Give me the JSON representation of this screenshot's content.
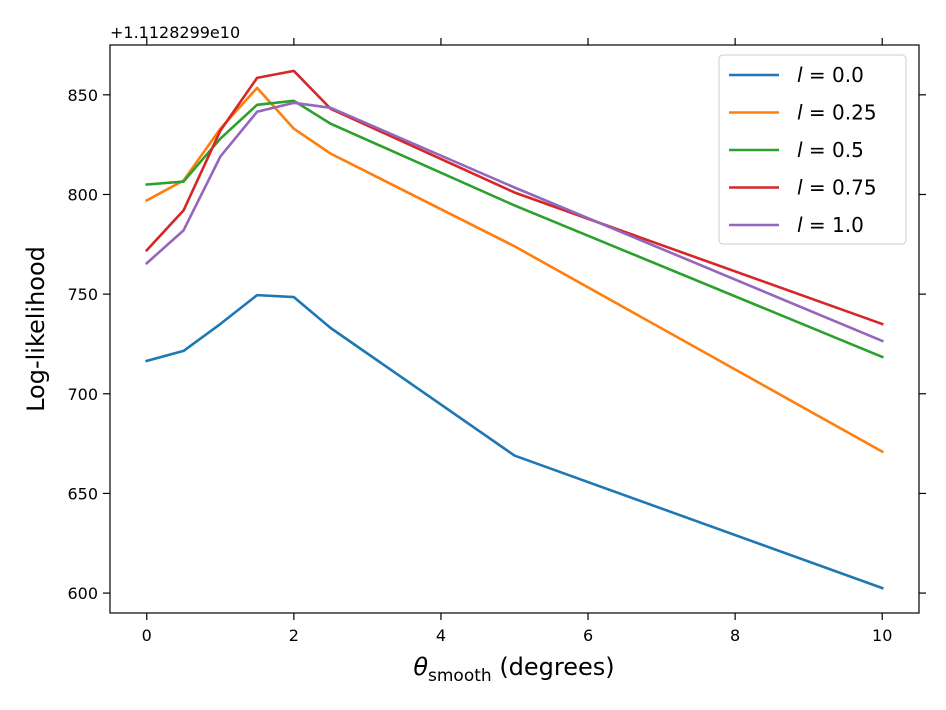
{
  "chart_data": {
    "type": "line",
    "title": "",
    "offset_text": "+1.1128299e10",
    "xlabel_symbol": "θ",
    "xlabel_subscript": "smooth",
    "xlabel_suffix": " (degrees)",
    "ylabel": "Log-likelihood",
    "xlim": [
      -0.5,
      10.5
    ],
    "ylim": [
      590,
      875
    ],
    "x_ticks": [
      0,
      2,
      4,
      6,
      8,
      10
    ],
    "y_ticks": [
      600,
      650,
      700,
      750,
      800,
      850
    ],
    "grid": false,
    "legend_position": "top-right",
    "x": [
      0,
      0.5,
      1,
      1.5,
      2,
      2.5,
      5,
      10
    ],
    "series": [
      {
        "name": "l = 0.0",
        "param": "l",
        "value": "0.0",
        "color": "#1f77b4",
        "values": [
          716.5,
          721.5,
          735,
          749.5,
          748.5,
          733,
          669,
          602.5
        ]
      },
      {
        "name": "l = 0.25",
        "param": "l",
        "value": "0.25",
        "color": "#ff7f0e",
        "values": [
          797,
          807,
          833,
          853.5,
          833,
          820.5,
          774,
          671
        ]
      },
      {
        "name": "l = 0.5",
        "param": "l",
        "value": "0.5",
        "color": "#2ca02c",
        "values": [
          805,
          806.5,
          828,
          845,
          847,
          835.5,
          794.5,
          718.5
        ]
      },
      {
        "name": "l = 0.75",
        "param": "l",
        "value": "0.75",
        "color": "#d62728",
        "values": [
          772,
          792,
          832,
          858.5,
          862,
          843,
          801,
          735
        ]
      },
      {
        "name": "l = 1.0",
        "param": "l",
        "value": "1.0",
        "color": "#9467bd",
        "values": [
          765.5,
          782,
          819,
          841.5,
          846,
          843.5,
          803.5,
          726.5
        ]
      }
    ]
  }
}
